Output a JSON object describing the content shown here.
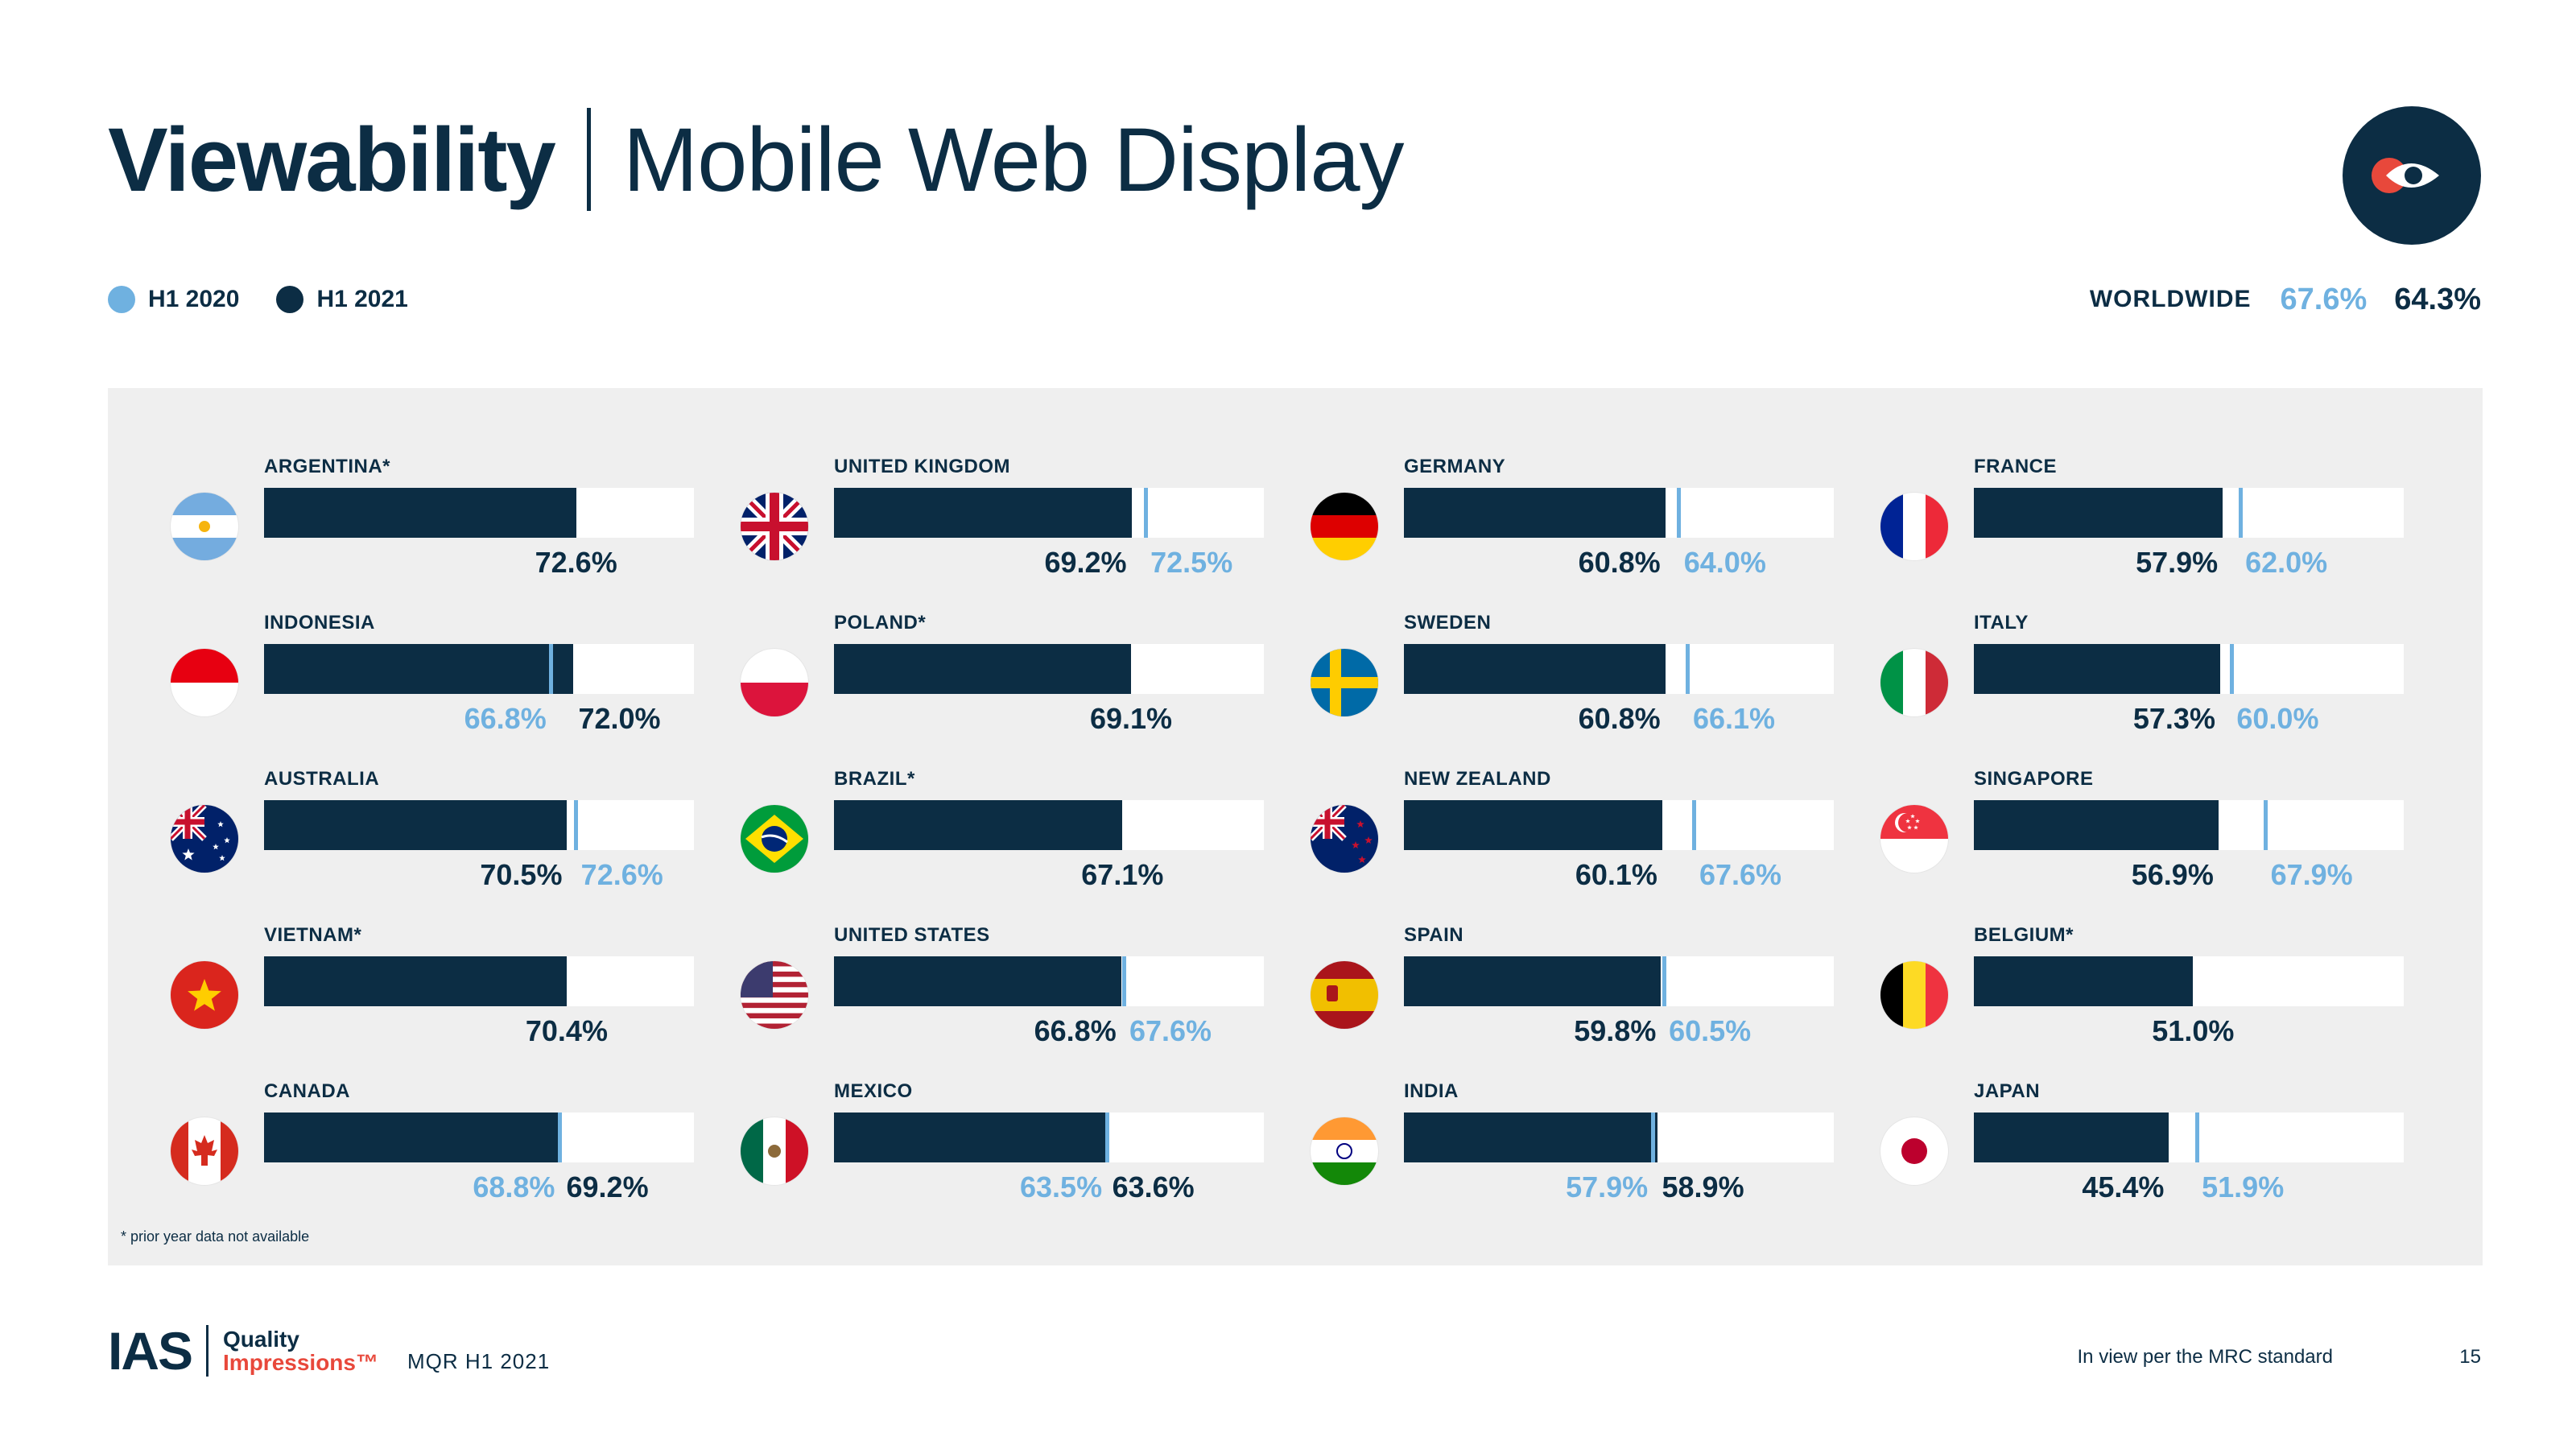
{
  "header": {
    "title": "Viewability",
    "subtitle": "Mobile Web Display"
  },
  "legend": [
    {
      "label": "H1 2020",
      "color": "#6fb1e0"
    },
    {
      "label": "H1 2021",
      "color": "#0c2d44"
    }
  ],
  "worldwide": {
    "label": "WORLDWIDE",
    "h1_2020": "67.6%",
    "h1_2021": "64.3%"
  },
  "colors": {
    "h1_2020": "#6fb1e0",
    "h1_2021": "#0c2d44",
    "brand_red": "#e8483b",
    "panel_bg": "#efefef"
  },
  "chart_data": {
    "type": "bar",
    "orientation": "horizontal",
    "xlim": [
      0,
      100
    ],
    "series": [
      {
        "name": "H1 2020",
        "color": "#6fb1e0"
      },
      {
        "name": "H1 2021",
        "color": "#0c2d44"
      }
    ],
    "columns": [
      [
        {
          "country": "ARGENTINA*",
          "flag": "argentina",
          "h1_2021": 72.6,
          "h1_2020": null
        },
        {
          "country": "INDONESIA",
          "flag": "indonesia",
          "h1_2021": 72.0,
          "h1_2020": 66.8
        },
        {
          "country": "AUSTRALIA",
          "flag": "australia",
          "h1_2021": 70.5,
          "h1_2020": 72.6
        },
        {
          "country": "VIETNAM*",
          "flag": "vietnam",
          "h1_2021": 70.4,
          "h1_2020": null
        },
        {
          "country": "CANADA",
          "flag": "canada",
          "h1_2021": 69.2,
          "h1_2020": 68.8
        }
      ],
      [
        {
          "country": "UNITED KINGDOM",
          "flag": "uk",
          "h1_2021": 69.2,
          "h1_2020": 72.5
        },
        {
          "country": "POLAND*",
          "flag": "poland",
          "h1_2021": 69.1,
          "h1_2020": null
        },
        {
          "country": "BRAZIL*",
          "flag": "brazil",
          "h1_2021": 67.1,
          "h1_2020": null
        },
        {
          "country": "UNITED STATES",
          "flag": "usa",
          "h1_2021": 66.8,
          "h1_2020": 67.6
        },
        {
          "country": "MEXICO",
          "flag": "mexico",
          "h1_2021": 63.6,
          "h1_2020": 63.5
        }
      ],
      [
        {
          "country": "GERMANY",
          "flag": "germany",
          "h1_2021": 60.8,
          "h1_2020": 64.0
        },
        {
          "country": "SWEDEN",
          "flag": "sweden",
          "h1_2021": 60.8,
          "h1_2020": 66.1
        },
        {
          "country": "NEW ZEALAND",
          "flag": "newzealand",
          "h1_2021": 60.1,
          "h1_2020": 67.6
        },
        {
          "country": "SPAIN",
          "flag": "spain",
          "h1_2021": 59.8,
          "h1_2020": 60.5
        },
        {
          "country": "INDIA",
          "flag": "india",
          "h1_2021": 58.9,
          "h1_2020": 57.9
        }
      ],
      [
        {
          "country": "FRANCE",
          "flag": "france",
          "h1_2021": 57.9,
          "h1_2020": 62.0
        },
        {
          "country": "ITALY",
          "flag": "italy",
          "h1_2021": 57.3,
          "h1_2020": 60.0
        },
        {
          "country": "SINGAPORE",
          "flag": "singapore",
          "h1_2021": 56.9,
          "h1_2020": 67.9
        },
        {
          "country": "BELGIUM*",
          "flag": "belgium",
          "h1_2021": 51.0,
          "h1_2020": null
        },
        {
          "country": "JAPAN",
          "flag": "japan",
          "h1_2021": 45.4,
          "h1_2020": 51.9
        }
      ]
    ],
    "footnote": "* prior year data not available"
  },
  "footer": {
    "logo_text": "IAS",
    "tagline_1": "Quality",
    "tagline_2": "Impressions™",
    "report": "MQR H1 2021",
    "note": "In view per the MRC standard",
    "page": "15"
  }
}
